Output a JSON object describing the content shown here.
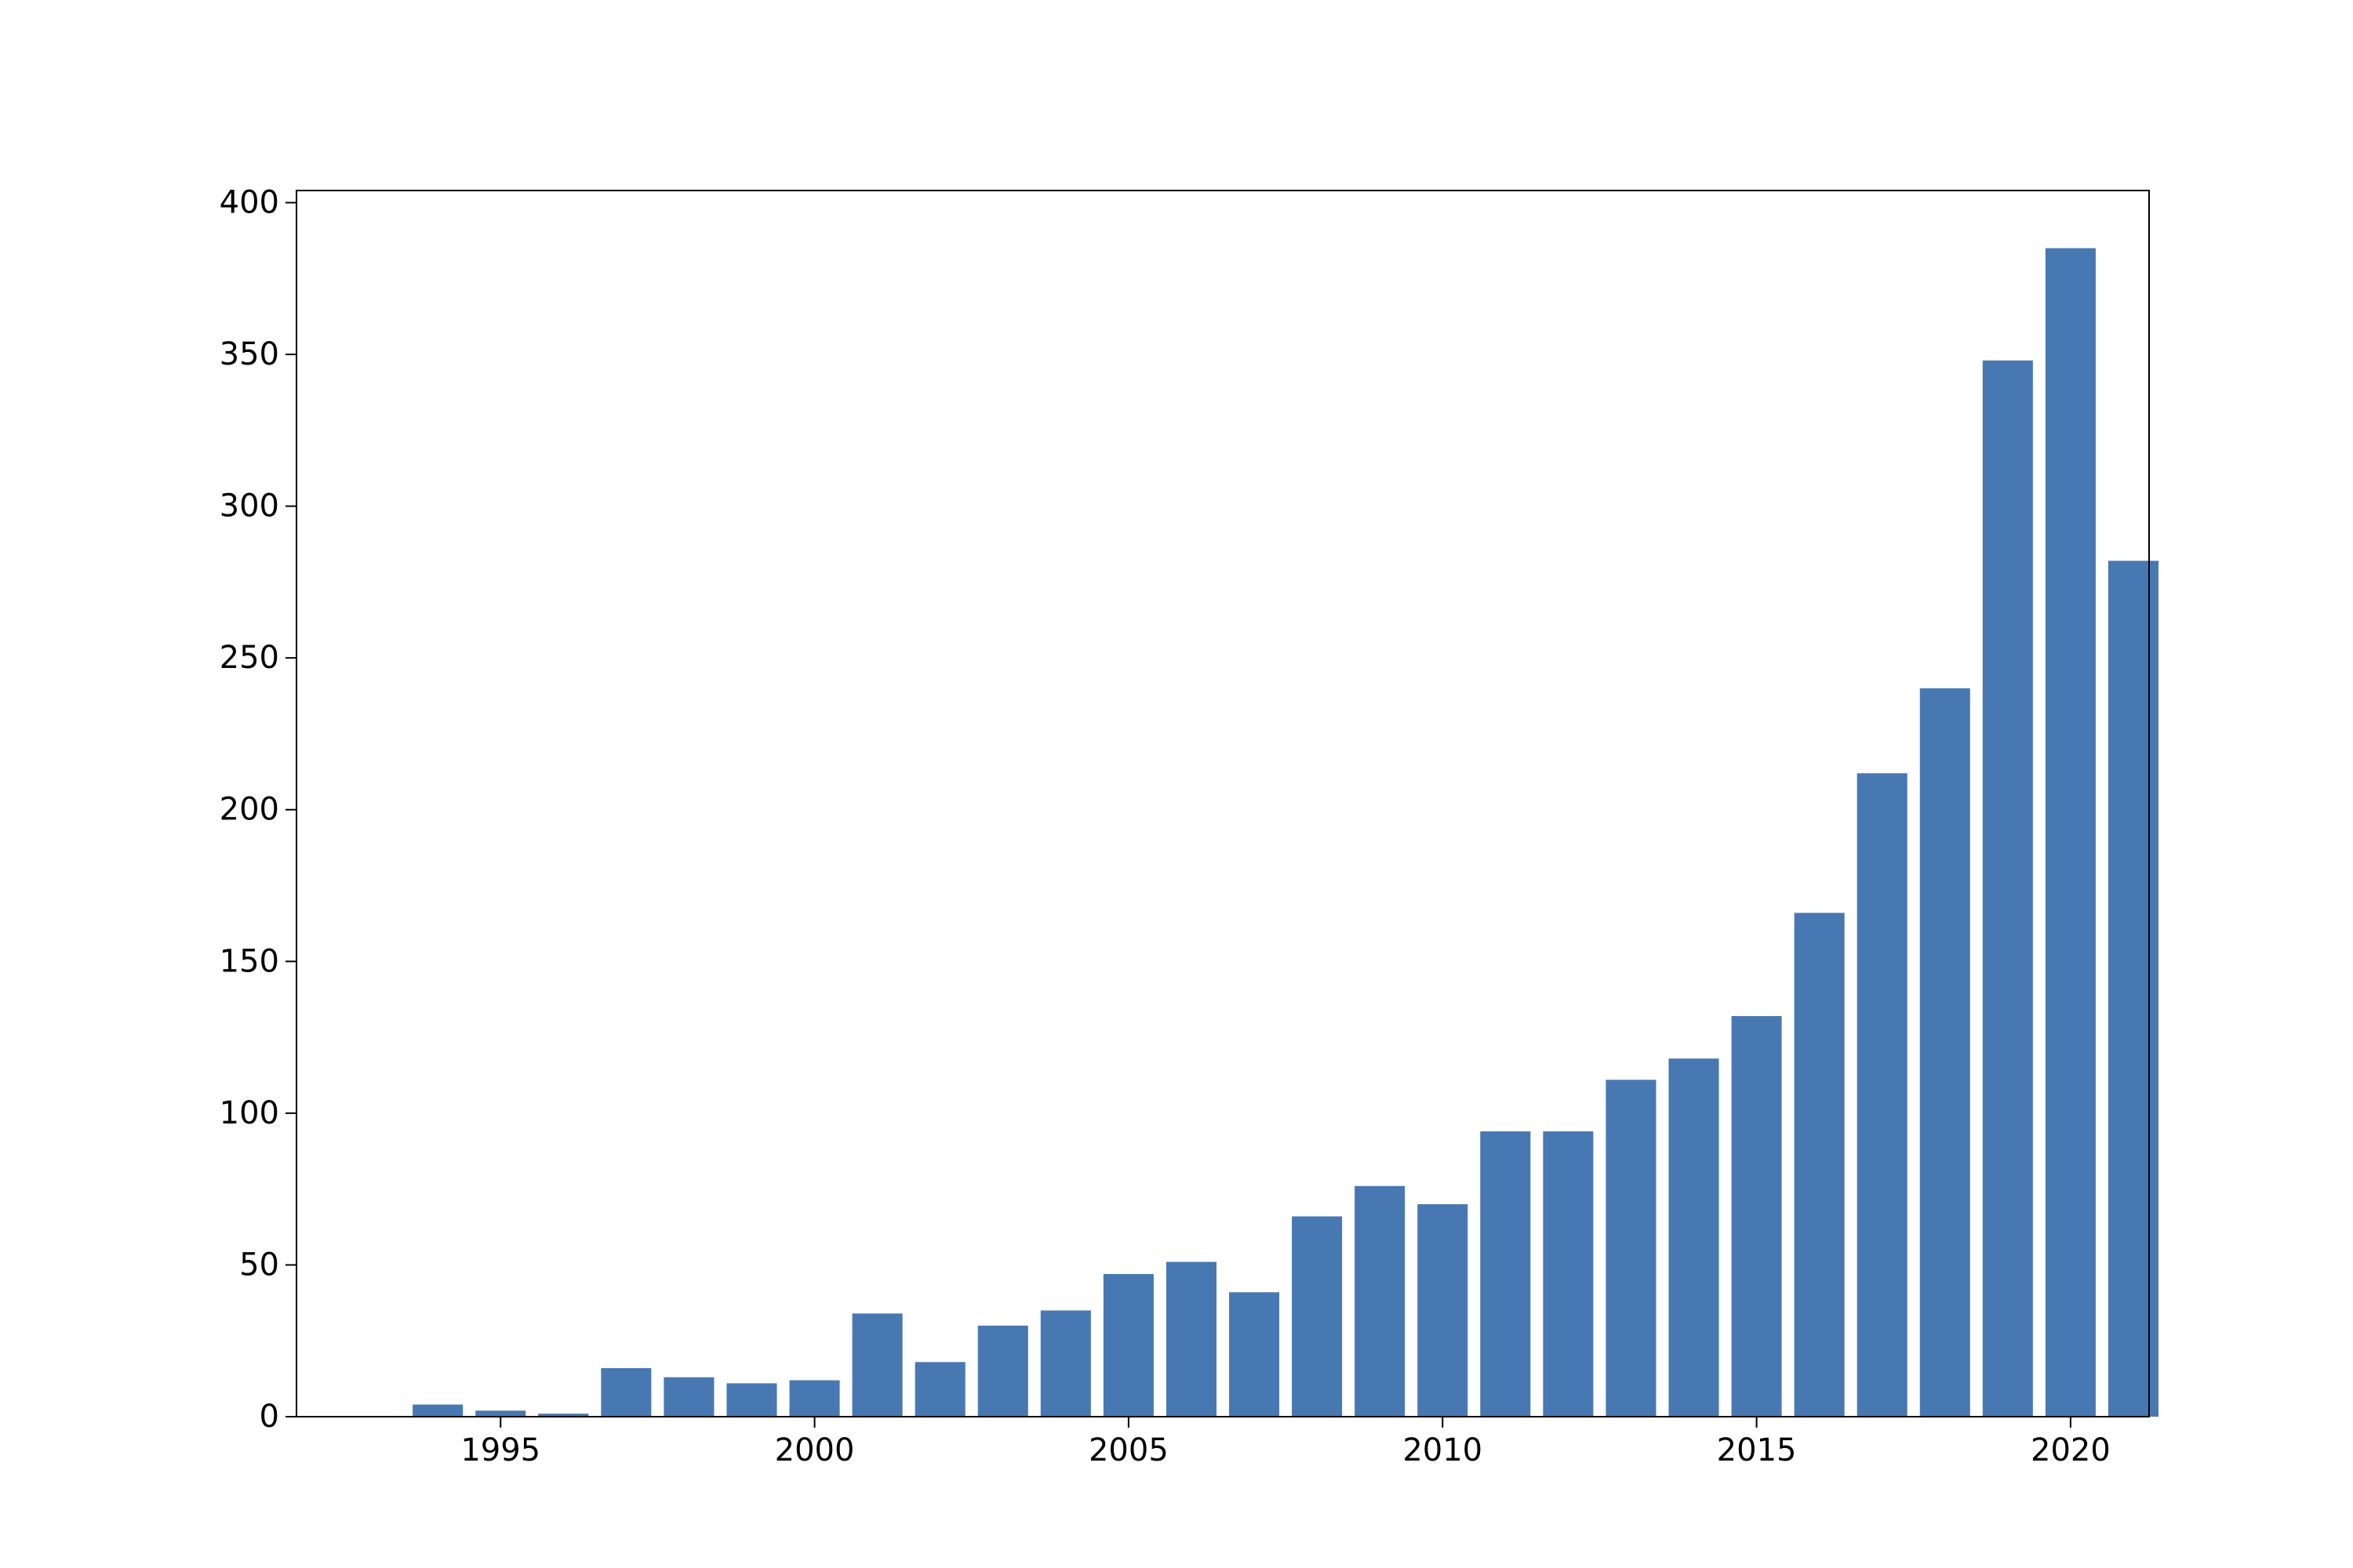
{
  "chart_data": {
    "type": "bar",
    "title": "",
    "xlabel": "",
    "ylabel": "",
    "categories": [
      1994,
      1995,
      1996,
      1997,
      1998,
      1999,
      2000,
      2001,
      2002,
      2003,
      2004,
      2005,
      2006,
      2007,
      2008,
      2009,
      2010,
      2011,
      2012,
      2013,
      2014,
      2015,
      2016,
      2017,
      2018,
      2019,
      2020,
      2021
    ],
    "values": [
      4,
      2,
      1,
      16,
      13,
      11,
      12,
      34,
      18,
      30,
      35,
      47,
      51,
      41,
      66,
      76,
      70,
      94,
      94,
      111,
      118,
      132,
      166,
      212,
      240,
      348,
      385,
      282
    ],
    "xlim": [
      1991.75,
      2021.25
    ],
    "ylim": [
      0,
      404
    ],
    "xticks": [
      1995,
      2000,
      2005,
      2010,
      2015,
      2020
    ],
    "yticks": [
      0,
      50,
      100,
      150,
      200,
      250,
      300,
      350,
      400
    ],
    "grid": false,
    "legend": "none",
    "bar_color": "#4878b2"
  }
}
